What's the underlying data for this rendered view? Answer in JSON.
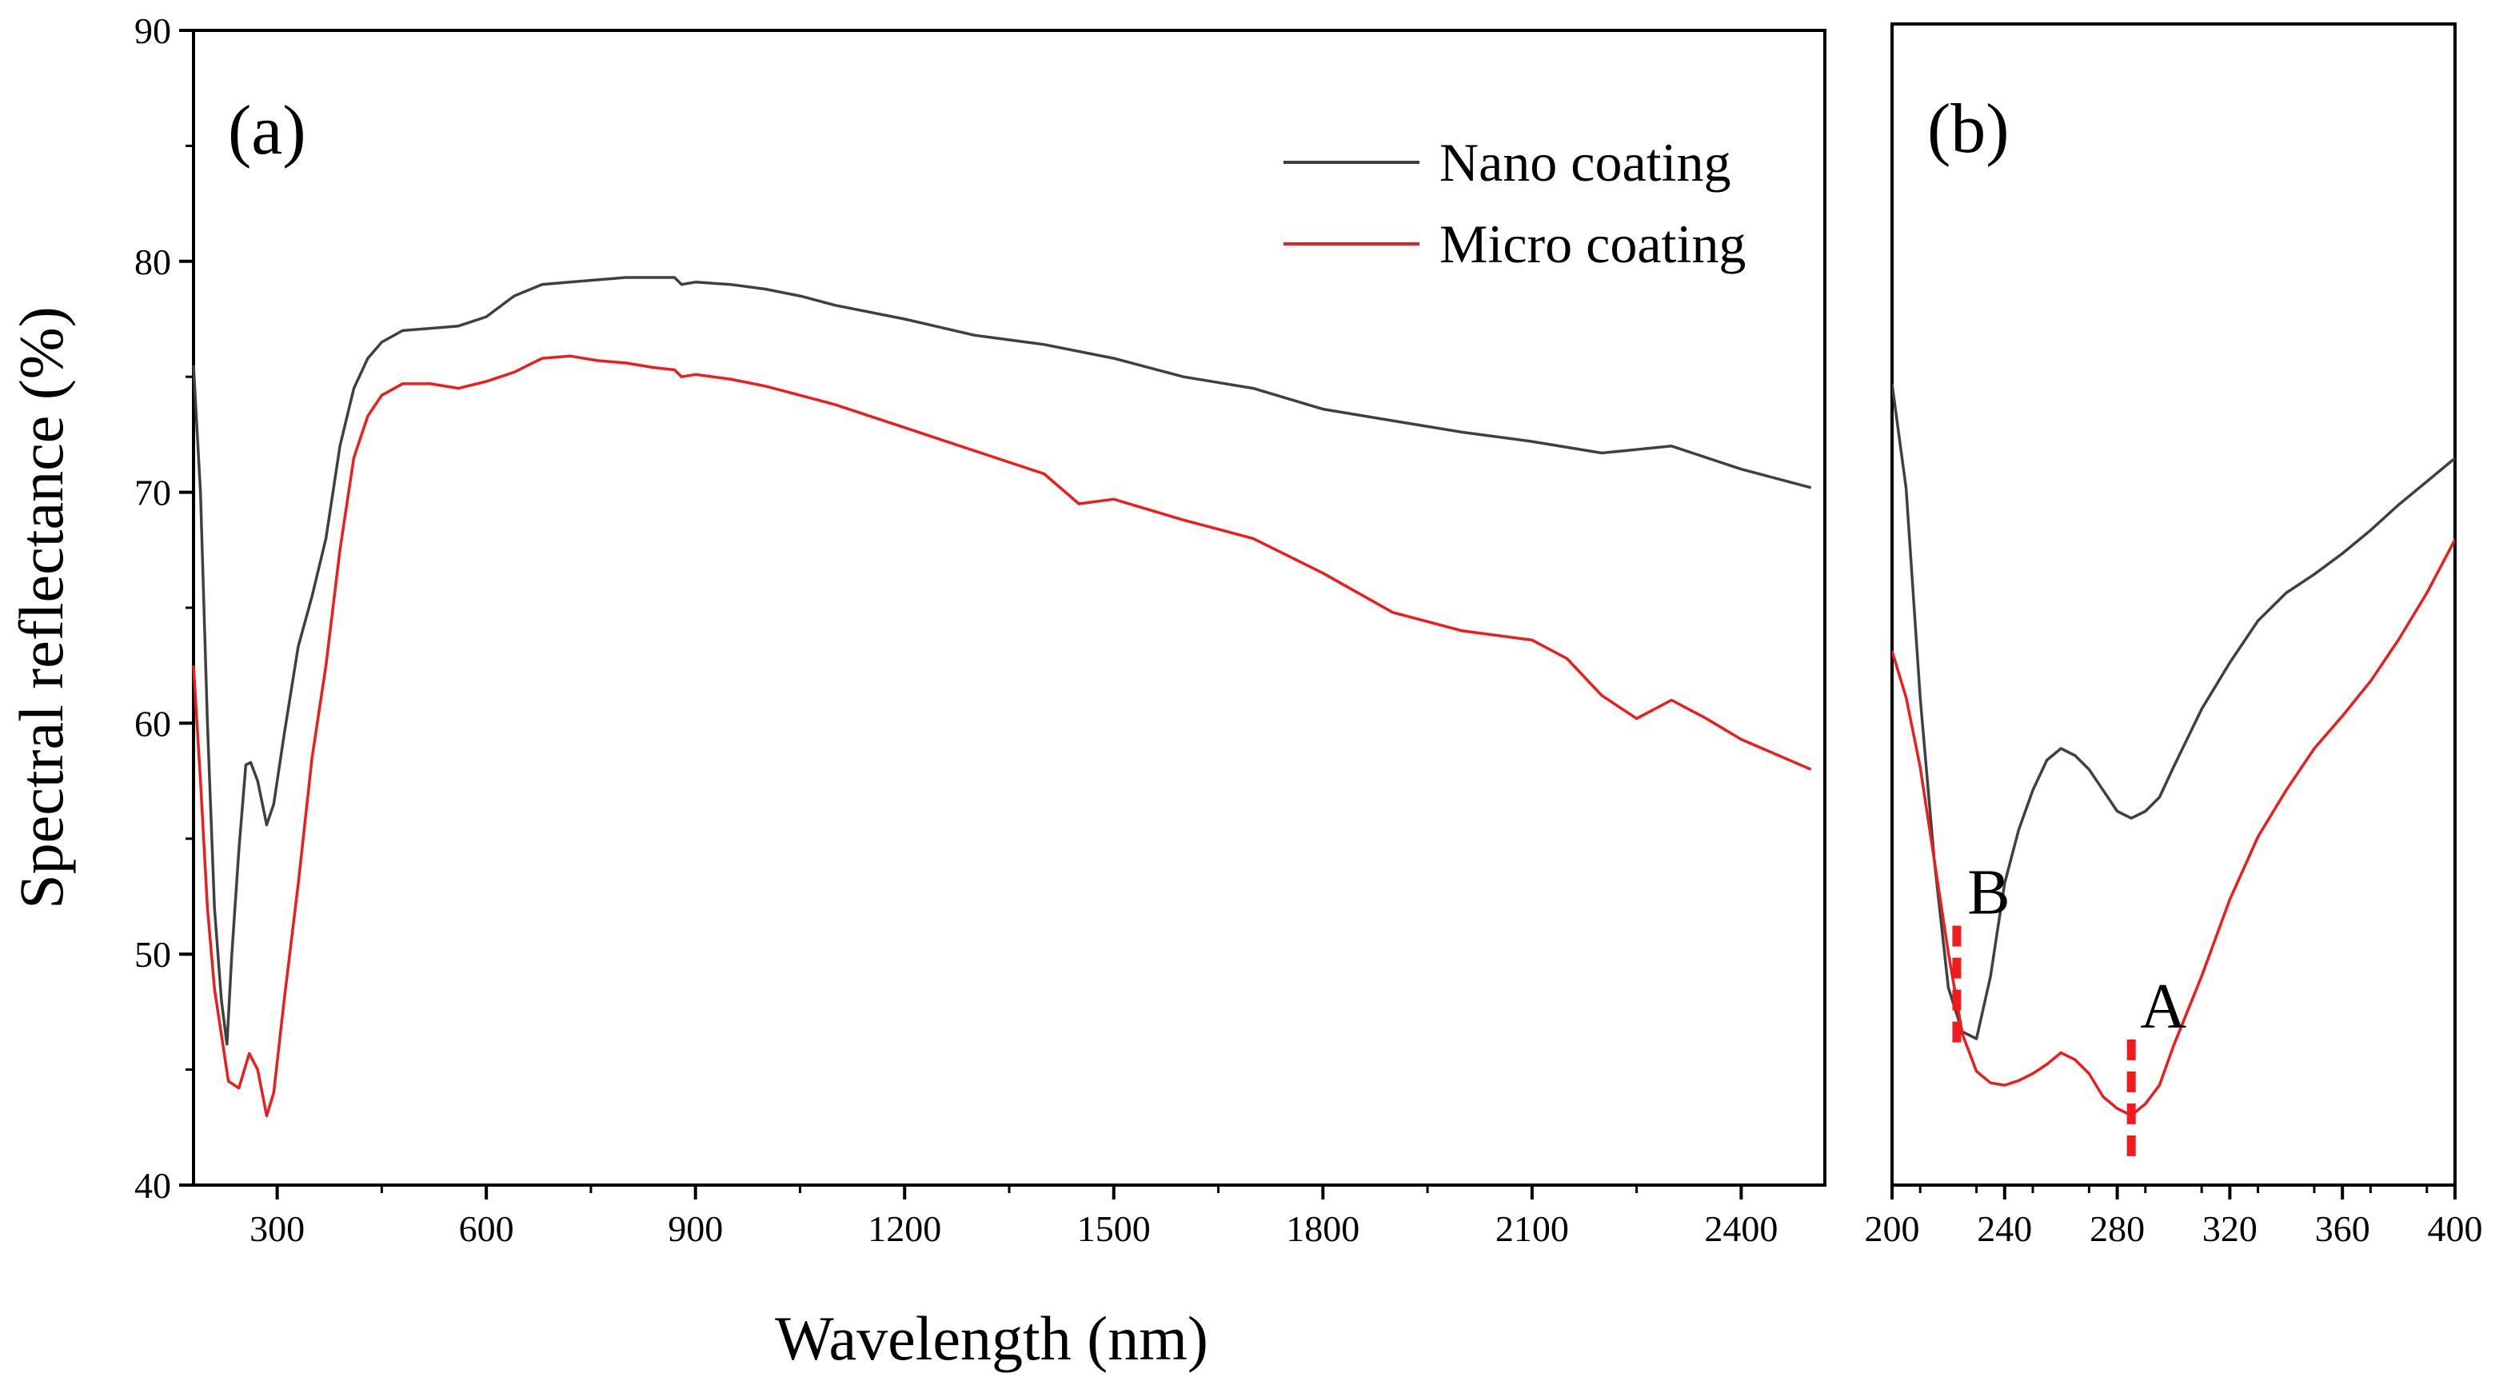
{
  "chart_data": [
    {
      "panel": "(a)",
      "type": "line",
      "xlabel": "Wavelength (nm)",
      "ylabel": "Spectral reflectance (%)",
      "xlim": [
        180,
        2520
      ],
      "ylim": [
        40,
        90
      ],
      "xticks": [
        300,
        600,
        900,
        1200,
        1500,
        1800,
        2100,
        2400
      ],
      "yticks": [
        40,
        50,
        60,
        70,
        80,
        90
      ],
      "legend": {
        "position": "top-right",
        "entries": [
          "Nano coating",
          "Micro coating"
        ]
      },
      "series": [
        {
          "name": "Nano coating",
          "color": "#404040",
          "x": [
            180,
            190,
            200,
            210,
            220,
            228,
            235,
            245,
            255,
            262,
            272,
            285,
            295,
            310,
            330,
            350,
            370,
            390,
            410,
            430,
            450,
            480,
            520,
            560,
            600,
            640,
            680,
            720,
            760,
            800,
            840,
            870,
            880,
            900,
            950,
            1000,
            1050,
            1100,
            1200,
            1300,
            1400,
            1500,
            1600,
            1700,
            1800,
            1900,
            2000,
            2100,
            2200,
            2300,
            2400,
            2500
          ],
          "y": [
            75.5,
            70,
            60,
            52,
            48,
            46.1,
            50,
            54.5,
            58.2,
            58.3,
            57.5,
            55.6,
            56.5,
            59.5,
            63.3,
            65.5,
            68,
            72,
            74.5,
            75.8,
            76.5,
            77,
            77.1,
            77.2,
            77.6,
            78.5,
            79,
            79.1,
            79.2,
            79.3,
            79.3,
            79.3,
            79.0,
            79.1,
            79.0,
            78.8,
            78.5,
            78.1,
            77.5,
            76.8,
            76.4,
            75.8,
            75.0,
            74.5,
            73.6,
            73.1,
            72.6,
            72.2,
            71.7,
            72.0,
            71.0,
            70.2
          ]
        },
        {
          "name": "Micro coating",
          "color": "#ee1c1c",
          "x": [
            180,
            190,
            200,
            210,
            220,
            230,
            245,
            260,
            272,
            285,
            295,
            310,
            330,
            350,
            370,
            390,
            410,
            430,
            450,
            480,
            520,
            560,
            600,
            640,
            680,
            720,
            760,
            800,
            840,
            870,
            880,
            900,
            950,
            1000,
            1100,
            1200,
            1300,
            1400,
            1450,
            1500,
            1600,
            1700,
            1800,
            1900,
            2000,
            2100,
            2150,
            2200,
            2250,
            2300,
            2350,
            2400,
            2500
          ],
          "y": [
            62.5,
            57.5,
            52,
            48.5,
            46.5,
            44.5,
            44.2,
            45.7,
            45.0,
            43.0,
            44.0,
            48.0,
            53.0,
            58.5,
            62.5,
            67.5,
            71.5,
            73.3,
            74.2,
            74.7,
            74.7,
            74.5,
            74.8,
            75.2,
            75.8,
            75.9,
            75.7,
            75.6,
            75.4,
            75.3,
            75.0,
            75.1,
            74.9,
            74.6,
            73.8,
            72.8,
            71.8,
            70.8,
            69.5,
            69.7,
            68.8,
            68.0,
            66.5,
            64.8,
            64.0,
            63.6,
            62.8,
            61.2,
            60.2,
            61.0,
            60.2,
            59.3,
            58.0
          ]
        }
      ]
    },
    {
      "panel": "(b)",
      "type": "line",
      "xlabel": "",
      "ylabel": "",
      "xlim": [
        200,
        400
      ],
      "ylim": [
        40,
        90
      ],
      "xticks": [
        200,
        240,
        280,
        320,
        360,
        400
      ],
      "series": [
        {
          "name": "Nano coating",
          "color": "#404040",
          "x": [
            200,
            205,
            210,
            215,
            220,
            225,
            230,
            235,
            240,
            245,
            250,
            255,
            260,
            265,
            270,
            275,
            280,
            285,
            290,
            295,
            300,
            310,
            320,
            330,
            340,
            350,
            360,
            370,
            380,
            390,
            400
          ],
          "y": [
            74.5,
            70,
            61,
            54,
            48.5,
            46.6,
            46.3,
            49,
            53,
            55.3,
            57,
            58.3,
            58.8,
            58.5,
            57.9,
            57,
            56.1,
            55.8,
            56.1,
            56.7,
            58,
            60.5,
            62.5,
            64.3,
            65.5,
            66.3,
            67.2,
            68.2,
            69.3,
            70.3,
            71.3
          ]
        },
        {
          "name": "Micro coating",
          "color": "#ee1c1c",
          "x": [
            200,
            205,
            210,
            215,
            220,
            225,
            230,
            235,
            240,
            245,
            250,
            255,
            260,
            265,
            270,
            275,
            280,
            285,
            290,
            295,
            300,
            310,
            320,
            330,
            340,
            350,
            360,
            370,
            380,
            390,
            400
          ],
          "y": [
            63,
            61,
            58,
            54,
            50,
            46.5,
            44.9,
            44.4,
            44.3,
            44.5,
            44.8,
            45.2,
            45.7,
            45.4,
            44.8,
            43.8,
            43.3,
            43.0,
            43.5,
            44.3,
            46,
            49,
            52.3,
            55,
            57,
            58.8,
            60.2,
            61.7,
            63.5,
            65.5,
            67.8
          ]
        }
      ],
      "annotations": [
        {
          "label": "A",
          "x": 285,
          "color": "#ee1c1c"
        },
        {
          "label": "B",
          "x": 223,
          "color": "#ee1c1c"
        }
      ]
    }
  ]
}
